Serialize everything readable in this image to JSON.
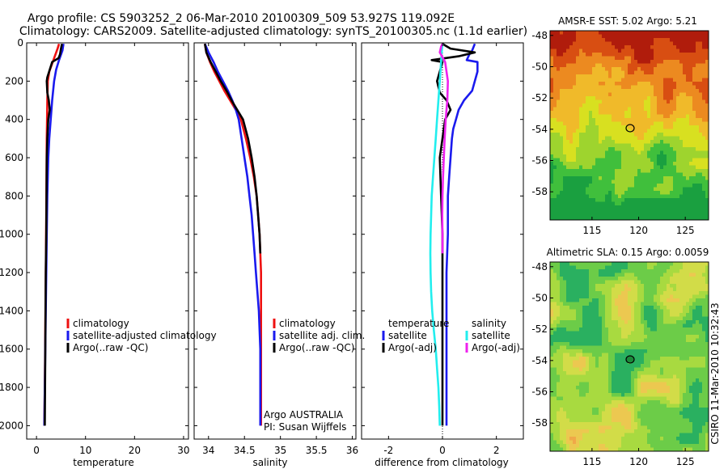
{
  "title": {
    "line1": "Argo profile: CS 5903252_2 06-Mar-2010 20100309_509 53.927S 119.092E",
    "line2": "Climatology: CARS2009. Satellite-adjusted climatology: synTS_20100305.nc (1.1d earlier)"
  },
  "credit": "CSIRO 11-Mar-2010 10:32:43",
  "colors": {
    "red": "#ee1111",
    "blue": "#1a1aee",
    "black": "#000000",
    "cyan": "#22eeee",
    "magenta": "#ee22ee"
  },
  "chart_data": [
    {
      "id": "temperature",
      "type": "line",
      "xlabel": "temperature",
      "xlim": [
        -2,
        31
      ],
      "xticks": [
        0,
        10,
        20,
        30
      ],
      "ylim": [
        2070,
        0
      ],
      "yticks": [
        0,
        200,
        400,
        600,
        800,
        1000,
        1200,
        1400,
        1600,
        1800,
        2000
      ],
      "legend": [
        "climatology",
        "satellite-adjusted climatology",
        "Argo(..raw -QC)"
      ],
      "series": [
        {
          "name": "climatology",
          "color": "red",
          "points": [
            [
              4.6,
              5
            ],
            [
              4.3,
              30
            ],
            [
              3.6,
              80
            ],
            [
              2.6,
              150
            ],
            [
              2.3,
              200
            ],
            [
              2.2,
              300
            ],
            [
              2.15,
              400
            ],
            [
              2.1,
              500
            ],
            [
              2.05,
              700
            ],
            [
              2.0,
              900
            ],
            [
              1.9,
              1200
            ],
            [
              1.8,
              1500
            ],
            [
              1.7,
              1800
            ],
            [
              1.6,
              2000
            ]
          ]
        },
        {
          "name": "satellite-adjusted climatology",
          "color": "blue",
          "points": [
            [
              5.5,
              5
            ],
            [
              5.3,
              40
            ],
            [
              4.6,
              90
            ],
            [
              4.0,
              140
            ],
            [
              3.6,
              200
            ],
            [
              3.2,
              300
            ],
            [
              2.9,
              400
            ],
            [
              2.6,
              500
            ],
            [
              2.4,
              600
            ],
            [
              2.2,
              800
            ],
            [
              2.1,
              1000
            ],
            [
              1.95,
              1300
            ],
            [
              1.8,
              1600
            ],
            [
              1.7,
              1800
            ],
            [
              1.6,
              2000
            ]
          ]
        },
        {
          "name": "Argo(..raw -QC)",
          "color": "black",
          "points": [
            [
              5.2,
              5
            ],
            [
              5.0,
              30
            ],
            [
              4.8,
              60
            ],
            [
              4.5,
              80
            ],
            [
              3.2,
              100
            ],
            [
              2.7,
              140
            ],
            [
              2.2,
              180
            ],
            [
              2.1,
              200
            ],
            [
              2.2,
              260
            ],
            [
              2.5,
              300
            ],
            [
              2.7,
              350
            ],
            [
              2.4,
              400
            ],
            [
              2.3,
              450
            ],
            [
              2.2,
              500
            ],
            [
              2.1,
              600
            ],
            [
              2.05,
              800
            ],
            [
              2.0,
              1000
            ],
            [
              1.9,
              1200
            ],
            [
              1.85,
              1400
            ],
            [
              1.8,
              1600
            ],
            [
              1.75,
              1800
            ],
            [
              1.7,
              2000
            ]
          ]
        }
      ]
    },
    {
      "id": "salinity",
      "type": "line",
      "xlabel": "salinity",
      "xlim": [
        33.8,
        36.05
      ],
      "xticks": [
        34,
        34.5,
        35,
        35.5,
        36
      ],
      "ylim": [
        2070,
        0
      ],
      "legend": [
        "climatology",
        "satellite adj. clim.",
        "Argo(..raw -QC)"
      ],
      "annotation": [
        "Argo AUSTRALIA",
        "PI: Susan Wijffels"
      ],
      "series": [
        {
          "name": "climatology",
          "color": "red",
          "points": [
            [
              33.95,
              5
            ],
            [
              33.97,
              50
            ],
            [
              34.02,
              100
            ],
            [
              34.08,
              150
            ],
            [
              34.15,
              200
            ],
            [
              34.22,
              250
            ],
            [
              34.3,
              300
            ],
            [
              34.38,
              350
            ],
            [
              34.45,
              400
            ],
            [
              34.52,
              500
            ],
            [
              34.58,
              600
            ],
            [
              34.63,
              700
            ],
            [
              34.67,
              800
            ],
            [
              34.69,
              900
            ],
            [
              34.71,
              1000
            ],
            [
              34.72,
              1100
            ],
            [
              34.73,
              1200
            ],
            [
              34.73,
              1400
            ],
            [
              34.73,
              1600
            ],
            [
              34.73,
              1800
            ],
            [
              34.73,
              2000
            ]
          ]
        },
        {
          "name": "satellite adj. clim.",
          "color": "blue",
          "points": [
            [
              33.95,
              5
            ],
            [
              34.0,
              50
            ],
            [
              34.07,
              100
            ],
            [
              34.13,
              150
            ],
            [
              34.2,
              200
            ],
            [
              34.27,
              250
            ],
            [
              34.33,
              300
            ],
            [
              34.38,
              350
            ],
            [
              34.42,
              400
            ],
            [
              34.46,
              500
            ],
            [
              34.5,
              600
            ],
            [
              34.54,
              700
            ],
            [
              34.57,
              800
            ],
            [
              34.6,
              900
            ],
            [
              34.62,
              1000
            ],
            [
              34.64,
              1100
            ],
            [
              34.66,
              1200
            ],
            [
              34.68,
              1300
            ],
            [
              34.7,
              1400
            ],
            [
              34.71,
              1500
            ],
            [
              34.72,
              1600
            ],
            [
              34.72,
              1800
            ],
            [
              34.72,
              2000
            ]
          ]
        },
        {
          "name": "Argo(..raw -QC)",
          "color": "black",
          "points": [
            [
              33.95,
              5
            ],
            [
              33.97,
              50
            ],
            [
              34.03,
              100
            ],
            [
              34.1,
              150
            ],
            [
              34.17,
              200
            ],
            [
              34.25,
              250
            ],
            [
              34.32,
              300
            ],
            [
              34.4,
              350
            ],
            [
              34.48,
              400
            ],
            [
              34.55,
              500
            ],
            [
              34.6,
              600
            ],
            [
              34.64,
              700
            ],
            [
              34.67,
              800
            ],
            [
              34.69,
              900
            ],
            [
              34.71,
              1000
            ],
            [
              34.72,
              1100
            ]
          ]
        }
      ]
    },
    {
      "id": "difference",
      "type": "line",
      "xlabel": "difference from climatology",
      "xlim": [
        -3,
        3
      ],
      "xticks": [
        -2,
        0,
        2
      ],
      "ylim": [
        2070,
        0
      ],
      "legend_left": {
        "title": "temperature",
        "items": [
          "satellite",
          "Argo(-adj)"
        ]
      },
      "legend_right": {
        "title": "salinity",
        "items": [
          "satellite",
          "Argo(-adj)"
        ]
      },
      "series": [
        {
          "name": "temperature satellite",
          "color": "blue",
          "points": [
            [
              1.2,
              5
            ],
            [
              1.1,
              40
            ],
            [
              1.0,
              60
            ],
            [
              0.9,
              90
            ],
            [
              1.3,
              100
            ],
            [
              1.3,
              150
            ],
            [
              1.2,
              200
            ],
            [
              1.1,
              250
            ],
            [
              0.8,
              300
            ],
            [
              0.6,
              350
            ],
            [
              0.5,
              400
            ],
            [
              0.4,
              450
            ],
            [
              0.35,
              500
            ],
            [
              0.3,
              600
            ],
            [
              0.25,
              700
            ],
            [
              0.2,
              800
            ],
            [
              0.2,
              1000
            ],
            [
              0.15,
              1200
            ],
            [
              0.15,
              1400
            ],
            [
              0.15,
              1600
            ],
            [
              0.15,
              1800
            ],
            [
              0.15,
              2000
            ]
          ]
        },
        {
          "name": "temperature Argo(-adj)",
          "color": "black",
          "points": [
            [
              0.0,
              5
            ],
            [
              0.3,
              30
            ],
            [
              1.2,
              50
            ],
            [
              0.6,
              70
            ],
            [
              0.1,
              80
            ],
            [
              -0.4,
              90
            ],
            [
              0.0,
              100
            ],
            [
              -0.1,
              150
            ],
            [
              -0.2,
              200
            ],
            [
              -0.1,
              260
            ],
            [
              0.15,
              300
            ],
            [
              0.3,
              350
            ],
            [
              0.1,
              400
            ],
            [
              0.0,
              500
            ],
            [
              -0.1,
              600
            ],
            [
              -0.05,
              800
            ],
            [
              0.0,
              1000
            ],
            [
              0.0,
              1200
            ],
            [
              0.0,
              1400
            ],
            [
              0.0,
              1600
            ],
            [
              0.0,
              1800
            ],
            [
              0.0,
              2000
            ]
          ]
        },
        {
          "name": "salinity satellite",
          "color": "cyan",
          "points": [
            [
              0.0,
              5
            ],
            [
              -0.03,
              50
            ],
            [
              -0.05,
              100
            ],
            [
              -0.1,
              200
            ],
            [
              -0.15,
              300
            ],
            [
              -0.2,
              400
            ],
            [
              -0.25,
              500
            ],
            [
              -0.3,
              600
            ],
            [
              -0.35,
              700
            ],
            [
              -0.4,
              800
            ],
            [
              -0.42,
              900
            ],
            [
              -0.44,
              1000
            ],
            [
              -0.45,
              1100
            ],
            [
              -0.44,
              1200
            ],
            [
              -0.42,
              1300
            ],
            [
              -0.38,
              1400
            ],
            [
              -0.32,
              1500
            ],
            [
              -0.25,
              1600
            ],
            [
              -0.2,
              1700
            ],
            [
              -0.15,
              1800
            ],
            [
              -0.12,
              1900
            ],
            [
              -0.1,
              2000
            ]
          ]
        },
        {
          "name": "salinity Argo(-adj)",
          "color": "magenta",
          "points": [
            [
              0.0,
              5
            ],
            [
              -0.05,
              20
            ],
            [
              -0.1,
              50
            ],
            [
              0.1,
              100
            ],
            [
              0.15,
              150
            ],
            [
              0.2,
              200
            ],
            [
              0.18,
              300
            ],
            [
              0.12,
              400
            ],
            [
              0.08,
              500
            ],
            [
              0.05,
              600
            ],
            [
              0.02,
              700
            ],
            [
              0.0,
              800
            ],
            [
              -0.01,
              900
            ],
            [
              0.0,
              1000
            ],
            [
              0.0,
              1100
            ]
          ]
        }
      ]
    },
    {
      "id": "sst-map",
      "type": "heatmap",
      "title": "AMSR-E SST: 5.02  Argo: 5.21",
      "xlim": [
        110.5,
        127.5
      ],
      "ylim": [
        -59.8,
        -47.7
      ],
      "xticks": [
        115,
        120,
        125
      ],
      "yticks": [
        -48,
        -50,
        -52,
        -54,
        -56,
        -58
      ],
      "marker": {
        "lon": 119.09,
        "lat": -53.93
      },
      "palette": [
        "#1aa040",
        "#40bf3c",
        "#9ed42e",
        "#d8e020",
        "#f0ba2a",
        "#ec8a20",
        "#d84e12",
        "#b01c0c"
      ]
    },
    {
      "id": "sla-map",
      "type": "heatmap",
      "title": "Altimetric SLA: 0.15  Argo: 0.0059",
      "xlim": [
        110.5,
        127.5
      ],
      "ylim": [
        -59.8,
        -47.7
      ],
      "xticks": [
        115,
        120,
        125
      ],
      "yticks": [
        -48,
        -50,
        -52,
        -54,
        -56,
        -58
      ],
      "marker": {
        "lon": 119.09,
        "lat": -53.93
      },
      "palette": [
        "#2ab060",
        "#6ccc48",
        "#a8da40",
        "#d2dc48",
        "#ecc850",
        "#f0a848"
      ]
    }
  ]
}
